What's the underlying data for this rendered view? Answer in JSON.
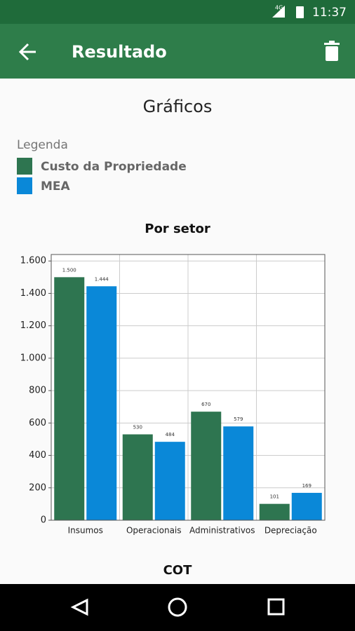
{
  "status_bar": {
    "network": "4G",
    "time": "11:37"
  },
  "app_bar": {
    "title": "Resultado"
  },
  "page": {
    "heading": "Gráficos",
    "legend_title": "Legenda",
    "next_section": "COT"
  },
  "chart_data": {
    "type": "bar",
    "title": "Por setor",
    "categories": [
      "Insumos",
      "Operacionais",
      "Administrativos",
      "Depreciação"
    ],
    "series": [
      {
        "name": "Custo da Propriedade",
        "color": "#2e7550",
        "values": [
          1500,
          530,
          670,
          101
        ],
        "value_labels": [
          "1.500",
          "530",
          "670",
          "101"
        ]
      },
      {
        "name": "MEA",
        "color": "#0a88d8",
        "values": [
          1444,
          484,
          579,
          169
        ],
        "value_labels": [
          "1.444",
          "484",
          "579",
          "169"
        ]
      }
    ],
    "ylim": [
      0,
      1640
    ],
    "yticks": [
      0,
      200,
      400,
      600,
      800,
      {
        "value": 1000,
        "label": "1.000"
      },
      {
        "value": 1200,
        "label": "1.200"
      },
      {
        "value": 1400,
        "label": "1.400"
      },
      {
        "value": 1600,
        "label": "1.600"
      }
    ],
    "grid": true
  }
}
